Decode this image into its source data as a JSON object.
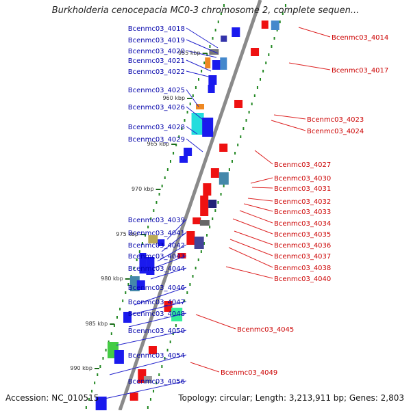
{
  "title": "Burkholderia cenocepacia MC0-3 chromosome 2, complete sequen...",
  "footer": {
    "accession": "Accession: NC_010515",
    "summary": "Topology: circular; Length: 3,213,911 bp; Genes: 2,803"
  },
  "colors": {
    "forward_gene": "#1a1aee",
    "reverse_gene": "#ee1111",
    "left_label": "#0000aa",
    "right_label": "#cc0000",
    "axis": "#888888",
    "tick": "#228822"
  },
  "kbp_labels": [
    "955 kbp",
    "960 kbp",
    "965 kbp",
    "970 kbp",
    "975 kbp",
    "980 kbp",
    "985 kbp",
    "990 kbp"
  ],
  "left_genes": [
    "Bcenmc03_4018",
    "Bcenmc03_4019",
    "Bcenmc03_4020",
    "Bcenmc03_4021",
    "Bcenmc03_4022",
    "Bcenmc03_4025",
    "Bcenmc03_4026",
    "Bcenmc03_4028",
    "Bcenmc03_4029",
    "Bcenmc03_4039",
    "Bcenmc03_4041",
    "Bcenmc03_4042",
    "Bcenmc03_4043",
    "Bcenmc03_4044",
    "Bcenmc03_4046",
    "Bcenmc03_4047",
    "Bcenmc03_4048",
    "Bcenmc03_4050",
    "Bcenmc03_4054",
    "Bcenmc03_4056"
  ],
  "right_genes": [
    "Bcenmc03_4014",
    "Bcenmc03_4017",
    "Bcenmc03_4023",
    "Bcenmc03_4024",
    "Bcenmc03_4027",
    "Bcenmc03_4030",
    "Bcenmc03_4031",
    "Bcenmc03_4032",
    "Bcenmc03_4033",
    "Bcenmc03_4034",
    "Bcenmc03_4035",
    "Bcenmc03_4036",
    "Bcenmc03_4037",
    "Bcenmc03_4038",
    "Bcenmc03_4040",
    "Bcenmc03_4045",
    "Bcenmc03_4049"
  ]
}
